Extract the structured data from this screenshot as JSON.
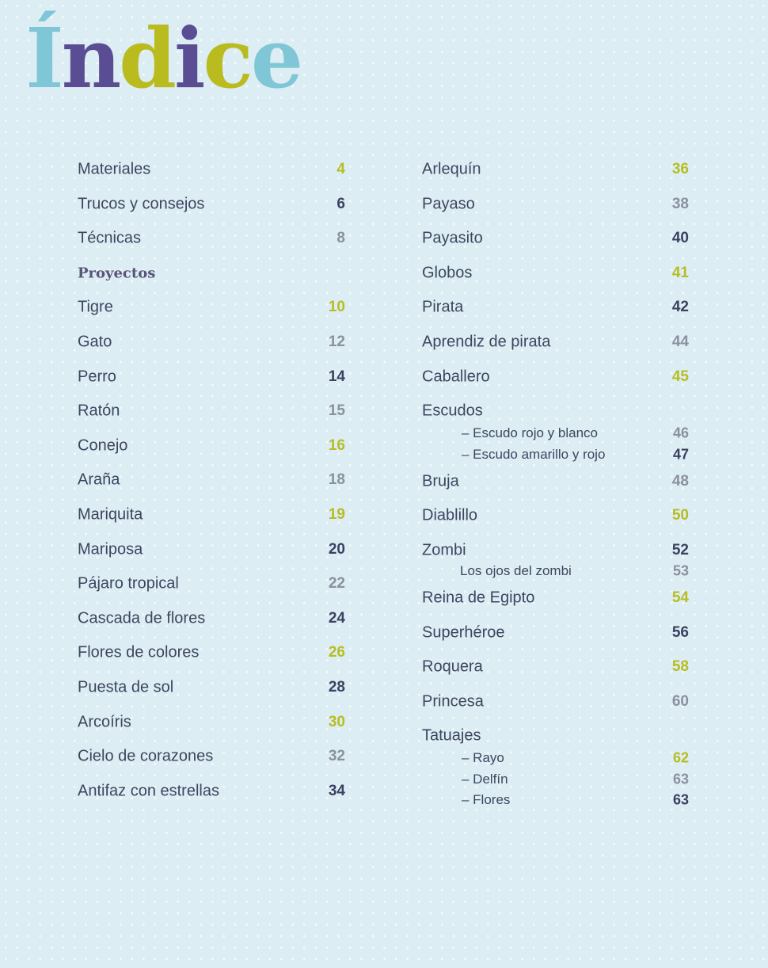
{
  "title": {
    "letters": [
      "Í",
      "n",
      "d",
      "i",
      "c",
      "e"
    ],
    "letter_colors": [
      "#7fc6d6",
      "#5a4d94",
      "#b9bb1f",
      "#5a4d94",
      "#b9bb1f",
      "#7fc6d6"
    ]
  },
  "colors": {
    "yellow": "#b7bd22",
    "dark": "#3b4160",
    "gray": "#8b90a0"
  },
  "left_column": [
    {
      "label": "Materiales",
      "page": "4",
      "color": "yellow"
    },
    {
      "label": "Trucos y consejos",
      "page": "6",
      "color": "dark"
    },
    {
      "label": "Técnicas",
      "page": "8",
      "color": "gray"
    },
    {
      "label": "Proyectos",
      "type": "heading"
    },
    {
      "label": "Tigre",
      "page": "10",
      "color": "yellow"
    },
    {
      "label": "Gato",
      "page": "12",
      "color": "gray"
    },
    {
      "label": "Perro",
      "page": "14",
      "color": "dark"
    },
    {
      "label": "Ratón",
      "page": "15",
      "color": "gray"
    },
    {
      "label": "Conejo",
      "page": "16",
      "color": "yellow"
    },
    {
      "label": "Araña",
      "page": "18",
      "color": "gray"
    },
    {
      "label": "Mariquita",
      "page": "19",
      "color": "yellow"
    },
    {
      "label": "Mariposa",
      "page": "20",
      "color": "dark"
    },
    {
      "label": "Pájaro tropical",
      "page": "22",
      "color": "gray"
    },
    {
      "label": "Cascada de flores",
      "page": "24",
      "color": "dark"
    },
    {
      "label": "Flores de colores",
      "page": "26",
      "color": "yellow"
    },
    {
      "label": "Puesta de sol",
      "page": "28",
      "color": "dark"
    },
    {
      "label": "Arcoíris",
      "page": "30",
      "color": "yellow"
    },
    {
      "label": "Cielo de corazones",
      "page": "32",
      "color": "gray"
    },
    {
      "label": "Antifaz con estrellas",
      "page": "34",
      "color": "dark"
    }
  ],
  "right_column": [
    {
      "label": "Arlequín",
      "page": "36",
      "color": "yellow"
    },
    {
      "label": "Payaso",
      "page": "38",
      "color": "gray"
    },
    {
      "label": "Payasito",
      "page": "40",
      "color": "dark"
    },
    {
      "label": "Globos",
      "page": "41",
      "color": "yellow"
    },
    {
      "label": "Pirata",
      "page": "42",
      "color": "dark"
    },
    {
      "label": "Aprendiz de pirata",
      "page": "44",
      "color": "gray"
    },
    {
      "label": "Caballero",
      "page": "45",
      "color": "yellow"
    },
    {
      "label": "Escudos"
    },
    {
      "label": "– Escudo rojo y blanco",
      "page": "46",
      "color": "gray",
      "type": "sub",
      "indent": 50
    },
    {
      "label": "– Escudo amarillo y rojo",
      "page": "47",
      "color": "dark",
      "type": "sub",
      "indent": 50
    },
    {
      "label": "Bruja",
      "page": "48",
      "color": "gray"
    },
    {
      "label": "Diablillo",
      "page": "50",
      "color": "yellow"
    },
    {
      "label": "Zombi",
      "page": "52",
      "color": "dark",
      "tight": true
    },
    {
      "label": "Los ojos del zombi",
      "page": "53",
      "color": "gray",
      "type": "sub",
      "indent": 48
    },
    {
      "label": "Reina de Egipto",
      "page": "54",
      "color": "yellow"
    },
    {
      "label": "Superhéroe",
      "page": "56",
      "color": "dark"
    },
    {
      "label": "Roquera",
      "page": "58",
      "color": "yellow"
    },
    {
      "label": "Princesa",
      "page": "60",
      "color": "gray"
    },
    {
      "label": "Tatuajes"
    },
    {
      "label": "– Rayo",
      "page": "62",
      "color": "yellow",
      "type": "sub",
      "indent": 50
    },
    {
      "label": "– Delfín",
      "page": "63",
      "color": "gray",
      "type": "sub",
      "indent": 50
    },
    {
      "label": "– Flores",
      "page": "63",
      "color": "dark",
      "type": "sub",
      "indent": 50
    }
  ]
}
